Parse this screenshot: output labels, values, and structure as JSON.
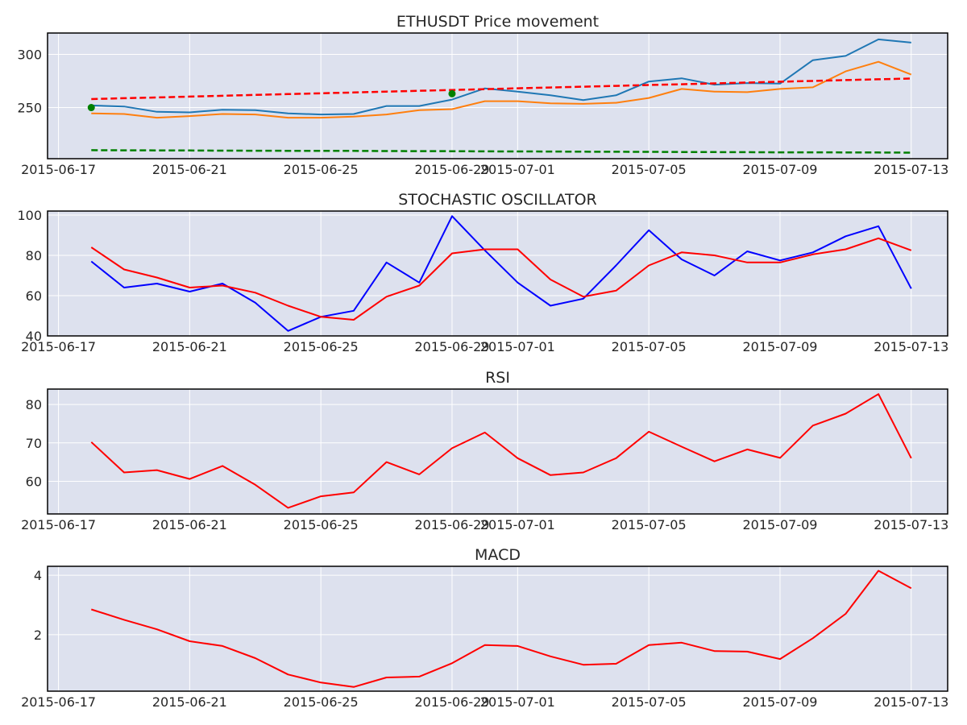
{
  "chart_data": [
    {
      "type": "line",
      "title": "ETHUSDT Price movement",
      "x": [
        "2015-06-18",
        "2015-06-19",
        "2015-06-20",
        "2015-06-21",
        "2015-06-22",
        "2015-06-23",
        "2015-06-24",
        "2015-06-25",
        "2015-06-26",
        "2015-06-27",
        "2015-06-28",
        "2015-06-29",
        "2015-06-30",
        "2015-07-01",
        "2015-07-02",
        "2015-07-03",
        "2015-07-04",
        "2015-07-05",
        "2015-07-06",
        "2015-07-07",
        "2015-07-08",
        "2015-07-09",
        "2015-07-10",
        "2015-07-11",
        "2015-07-12",
        "2015-07-13"
      ],
      "x_ticks": [
        "2015-06-17",
        "2015-06-21",
        "2015-06-25",
        "2015-06-29",
        "2015-07-01",
        "2015-07-05",
        "2015-07-09",
        "2015-07-13"
      ],
      "y_ticks": [
        250,
        300
      ],
      "ylim": [
        202,
        320
      ],
      "grid": true,
      "series": [
        {
          "color": "#1f77b4",
          "style": "solid",
          "values": [
            252,
            251,
            246,
            245.5,
            248,
            247.5,
            244.5,
            243.5,
            244,
            251.5,
            251.5,
            257.5,
            268,
            265,
            261.5,
            257,
            261.5,
            274.5,
            277.5,
            271.5,
            273,
            272.5,
            294.5,
            298.5,
            314,
            311
          ]
        },
        {
          "color": "#ff7f0e",
          "style": "solid",
          "values": [
            244.5,
            244,
            240.5,
            242,
            244,
            243.5,
            240.5,
            240.5,
            241.5,
            243.5,
            247.5,
            248.5,
            256,
            256,
            254,
            253.5,
            254.5,
            259,
            267.5,
            265,
            264.5,
            267.5,
            269,
            284,
            293,
            281
          ]
        },
        {
          "color": "#ff0000",
          "style": "dashed",
          "values": [
            258,
            258.8,
            259.5,
            260.3,
            261.1,
            261.9,
            262.7,
            263.4,
            264.2,
            265,
            265.8,
            266.5,
            267.3,
            268.1,
            268.9,
            269.6,
            270.4,
            271.2,
            271.9,
            272.7,
            273.5,
            274.3,
            275,
            275.8,
            276.6,
            277.3
          ]
        },
        {
          "color": "#008000",
          "style": "dashed",
          "values": [
            210,
            209.9,
            209.8,
            209.7,
            209.6,
            209.5,
            209.4,
            209.4,
            209.3,
            209.2,
            209.1,
            209,
            208.9,
            208.8,
            208.7,
            208.6,
            208.5,
            208.4,
            208.3,
            208.2,
            208.1,
            208,
            208,
            207.9,
            207.8,
            207.7
          ]
        }
      ],
      "markers": [
        {
          "color": "#008000",
          "x": "2015-06-18",
          "y": 250
        },
        {
          "color": "#008000",
          "x": "2015-06-29",
          "y": 263
        }
      ]
    },
    {
      "type": "line",
      "title": "STOCHASTIC OSCILLATOR",
      "x": [
        "2015-06-18",
        "2015-06-19",
        "2015-06-20",
        "2015-06-21",
        "2015-06-22",
        "2015-06-23",
        "2015-06-24",
        "2015-06-25",
        "2015-06-26",
        "2015-06-27",
        "2015-06-28",
        "2015-06-29",
        "2015-06-30",
        "2015-07-01",
        "2015-07-02",
        "2015-07-03",
        "2015-07-04",
        "2015-07-05",
        "2015-07-06",
        "2015-07-07",
        "2015-07-08",
        "2015-07-09",
        "2015-07-10",
        "2015-07-11",
        "2015-07-12",
        "2015-07-13"
      ],
      "x_ticks": [
        "2015-06-17",
        "2015-06-21",
        "2015-06-25",
        "2015-06-29",
        "2015-07-01",
        "2015-07-05",
        "2015-07-09",
        "2015-07-13"
      ],
      "y_ticks": [
        40,
        60,
        80,
        100
      ],
      "ylim": [
        40,
        102
      ],
      "grid": true,
      "series": [
        {
          "color": "#0000ff",
          "style": "solid",
          "values": [
            77,
            64,
            66,
            62,
            66,
            56.5,
            42.5,
            49.5,
            52.5,
            76.5,
            66.5,
            99.5,
            82.5,
            66.5,
            55,
            58.5,
            75,
            92.5,
            78,
            70,
            82,
            77.5,
            81.5,
            89.5,
            94.5,
            63.5
          ]
        },
        {
          "color": "#ff0000",
          "style": "solid",
          "values": [
            84,
            73,
            69,
            64,
            65,
            61.5,
            55,
            49.5,
            48,
            59.5,
            65,
            81,
            83,
            83,
            68,
            59.5,
            62.5,
            75,
            81.5,
            80,
            76.5,
            76.5,
            80.5,
            83,
            88.5,
            82.5
          ]
        }
      ]
    },
    {
      "type": "line",
      "title": "RSI",
      "x": [
        "2015-06-18",
        "2015-06-19",
        "2015-06-20",
        "2015-06-21",
        "2015-06-22",
        "2015-06-23",
        "2015-06-24",
        "2015-06-25",
        "2015-06-26",
        "2015-06-27",
        "2015-06-28",
        "2015-06-29",
        "2015-06-30",
        "2015-07-01",
        "2015-07-02",
        "2015-07-03",
        "2015-07-04",
        "2015-07-05",
        "2015-07-06",
        "2015-07-07",
        "2015-07-08",
        "2015-07-09",
        "2015-07-10",
        "2015-07-11",
        "2015-07-12",
        "2015-07-13"
      ],
      "x_ticks": [
        "2015-06-17",
        "2015-06-21",
        "2015-06-25",
        "2015-06-29",
        "2015-07-01",
        "2015-07-05",
        "2015-07-09",
        "2015-07-13"
      ],
      "y_ticks": [
        60,
        70,
        80
      ],
      "ylim": [
        51.5,
        84
      ],
      "grid": true,
      "series": [
        {
          "color": "#ff0000",
          "style": "solid",
          "values": [
            70.2,
            62.3,
            62.9,
            60.6,
            64,
            59.1,
            53.1,
            56.1,
            57.1,
            65,
            61.8,
            68.6,
            72.7,
            66,
            61.6,
            62.3,
            66,
            72.9,
            69,
            65.2,
            68.3,
            66.1,
            74.5,
            77.6,
            82.7,
            66
          ]
        }
      ]
    },
    {
      "type": "line",
      "title": "MACD",
      "x": [
        "2015-06-18",
        "2015-06-19",
        "2015-06-20",
        "2015-06-21",
        "2015-06-22",
        "2015-06-23",
        "2015-06-24",
        "2015-06-25",
        "2015-06-26",
        "2015-06-27",
        "2015-06-28",
        "2015-06-29",
        "2015-06-30",
        "2015-07-01",
        "2015-07-02",
        "2015-07-03",
        "2015-07-04",
        "2015-07-05",
        "2015-07-06",
        "2015-07-07",
        "2015-07-08",
        "2015-07-09",
        "2015-07-10",
        "2015-07-11",
        "2015-07-12",
        "2015-07-13"
      ],
      "x_ticks": [
        "2015-06-17",
        "2015-06-21",
        "2015-06-25",
        "2015-06-29",
        "2015-07-01",
        "2015-07-05",
        "2015-07-09",
        "2015-07-13"
      ],
      "y_ticks": [
        2,
        4
      ],
      "ylim": [
        0.1,
        4.3
      ],
      "grid": true,
      "series": [
        {
          "color": "#ff0000",
          "style": "solid",
          "values": [
            2.85,
            2.5,
            2.18,
            1.78,
            1.62,
            1.21,
            0.66,
            0.39,
            0.24,
            0.56,
            0.59,
            1.04,
            1.65,
            1.62,
            1.27,
            0.99,
            1.02,
            1.65,
            1.73,
            1.45,
            1.43,
            1.18,
            1.88,
            2.7,
            4.15,
            3.56
          ]
        }
      ]
    }
  ]
}
